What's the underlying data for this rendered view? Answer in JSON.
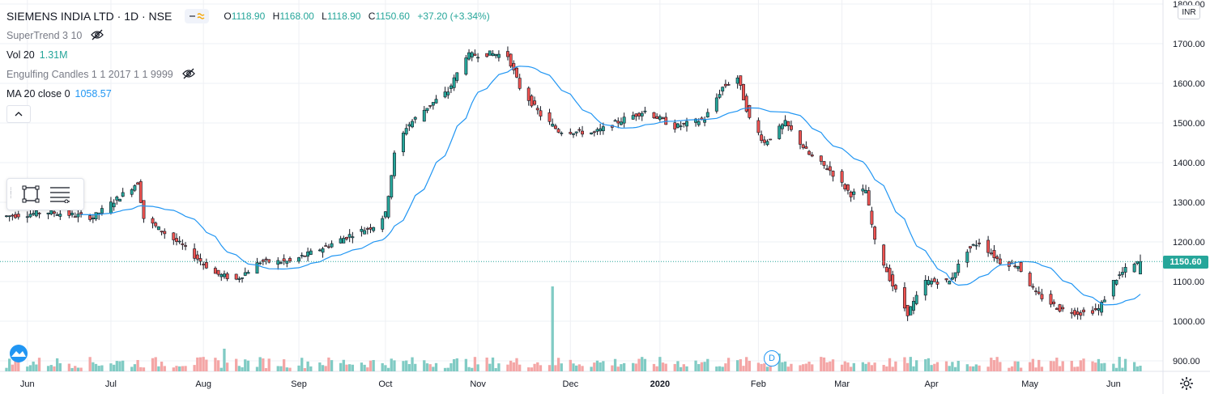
{
  "header": {
    "symbol_title": "SIEMENS INDIA LTD · 1D · NSE",
    "ohlc": {
      "o_label": "O",
      "o": "1118.90",
      "h_label": "H",
      "h": "1168.00",
      "l_label": "L",
      "l": "1118.90",
      "c_label": "C",
      "c": "1150.60",
      "change": "+37.20 (+3.34%)"
    }
  },
  "indicators": {
    "supertrend": "SuperTrend 3 10",
    "vol_label": "Vol 20",
    "vol_value": "1.31M",
    "engulfing": "Engulfing Candles 1 1 2017 1 1 9999",
    "ma_label": "MA 20 close 0",
    "ma_value": "1058.57"
  },
  "price_scale": {
    "currency": "INR",
    "last_price_label": "1150.60"
  },
  "event_marker": "D",
  "colors": {
    "up": "#26a69a",
    "down": "#ef5350",
    "ma": "#2196f3",
    "vol_up": "#80cbc4",
    "vol_down": "#f4a6a6",
    "grid": "#eef0f4"
  },
  "icons": [
    "eye-off-icon",
    "chevron-up-icon",
    "rectangle-tool-icon",
    "lines-tool-icon",
    "tradingview-logo-icon",
    "settings-gear-icon"
  ],
  "chart_data": {
    "type": "candlestick",
    "title": "SIEMENS INDIA LTD · 1D · NSE",
    "y_ticks": [
      900,
      1000,
      1100,
      1200,
      1300,
      1400,
      1500,
      1600,
      1700,
      1800
    ],
    "y_tick_labels": [
      "900.00",
      "1000.00",
      "1100.00",
      "1200.00",
      "1300.00",
      "1400.00",
      "1500.00",
      "1600.00",
      "1700.00",
      "1800.00"
    ],
    "ylim": [
      880,
      1810
    ],
    "x_labels": [
      "Jun",
      "Jul",
      "Aug",
      "Sep",
      "Oct",
      "Nov",
      "Dec",
      "2020",
      "Feb",
      "Mar",
      "Apr",
      "May",
      "Jun"
    ],
    "x_label_dates": [
      "2019-06-03",
      "2019-07-01",
      "2019-08-01",
      "2019-09-02",
      "2019-10-01",
      "2019-11-01",
      "2019-12-02",
      "2020-01-01",
      "2020-02-03",
      "2020-03-02",
      "2020-04-01",
      "2020-05-04",
      "2020-06-01"
    ],
    "date_range": [
      "2019-05-27",
      "2020-06-10"
    ],
    "grid": true,
    "last_price": 1150.6,
    "price_anchors": [
      [
        "2019-05-27",
        1265
      ],
      [
        "2019-06-10",
        1275
      ],
      [
        "2019-06-25",
        1262
      ],
      [
        "2019-07-05",
        1320
      ],
      [
        "2019-07-10",
        1350
      ],
      [
        "2019-07-12",
        1260
      ],
      [
        "2019-07-25",
        1190
      ],
      [
        "2019-08-05",
        1120
      ],
      [
        "2019-08-12",
        1105
      ],
      [
        "2019-08-20",
        1150
      ],
      [
        "2019-08-30",
        1150
      ],
      [
        "2019-09-10",
        1185
      ],
      [
        "2019-09-20",
        1220
      ],
      [
        "2019-09-27",
        1240
      ],
      [
        "2019-10-01",
        1270
      ],
      [
        "2019-10-04",
        1420
      ],
      [
        "2019-10-08",
        1490
      ],
      [
        "2019-10-15",
        1540
      ],
      [
        "2019-10-22",
        1580
      ],
      [
        "2019-10-28",
        1670
      ],
      [
        "2019-11-05",
        1675
      ],
      [
        "2019-11-11",
        1670
      ],
      [
        "2019-11-15",
        1590
      ],
      [
        "2019-11-22",
        1520
      ],
      [
        "2019-11-28",
        1480
      ],
      [
        "2019-12-10",
        1475
      ],
      [
        "2019-12-20",
        1510
      ],
      [
        "2019-12-27",
        1530
      ],
      [
        "2020-01-06",
        1490
      ],
      [
        "2020-01-16",
        1510
      ],
      [
        "2020-01-22",
        1590
      ],
      [
        "2020-01-27",
        1615
      ],
      [
        "2020-01-31",
        1510
      ],
      [
        "2020-02-05",
        1450
      ],
      [
        "2020-02-12",
        1500
      ],
      [
        "2020-02-20",
        1420
      ],
      [
        "2020-02-27",
        1380
      ],
      [
        "2020-03-05",
        1320
      ],
      [
        "2020-03-10",
        1330
      ],
      [
        "2020-03-13",
        1200
      ],
      [
        "2020-03-19",
        1090
      ],
      [
        "2020-03-24",
        1020
      ],
      [
        "2020-03-30",
        1100
      ],
      [
        "2020-04-07",
        1100
      ],
      [
        "2020-04-13",
        1180
      ],
      [
        "2020-04-17",
        1200
      ],
      [
        "2020-04-24",
        1150
      ],
      [
        "2020-04-30",
        1140
      ],
      [
        "2020-05-06",
        1070
      ],
      [
        "2020-05-14",
        1030
      ],
      [
        "2020-05-21",
        1020
      ],
      [
        "2020-05-27",
        1030
      ],
      [
        "2020-06-01",
        1100
      ],
      [
        "2020-06-05",
        1130
      ],
      [
        "2020-06-10",
        1150
      ]
    ],
    "volume_spikes": [
      [
        "2019-11-26",
        105
      ],
      [
        "2019-08-08",
        28
      ],
      [
        "2020-02-10",
        22
      ]
    ]
  }
}
